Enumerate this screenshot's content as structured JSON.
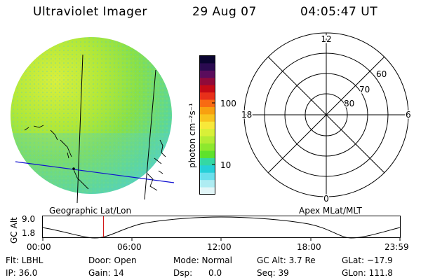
{
  "header": {
    "instrument": "Ultraviolet Imager",
    "date": "29 Aug 07",
    "time": "04:05:47 UT"
  },
  "colorbar": {
    "unit_label": "photon cm⁻²s⁻¹",
    "ticks": [
      "100",
      "10"
    ],
    "colors": [
      "#0a0430",
      "#2a0a50",
      "#5a0c5c",
      "#900a3a",
      "#c40a16",
      "#e8301a",
      "#f86a12",
      "#f8a010",
      "#f8c41e",
      "#f8e83a",
      "#d8f038",
      "#b4ec34",
      "#8ee82e",
      "#5ee22c",
      "#34d8a4",
      "#26d0d8",
      "#6ae0ec",
      "#aeecf2",
      "#e2f6f8"
    ]
  },
  "polar": {
    "mlt_labels": {
      "top": "12",
      "left": "18",
      "right": "6",
      "bottom": "0"
    },
    "lat_labels": [
      "60",
      "70",
      "80"
    ]
  },
  "timeline": {
    "left_title": "Geographic Lat/Lon",
    "right_title": "Apex MLat/MLT",
    "axis_label": "GC Alt",
    "y_ticks": [
      "9.0",
      "1.8"
    ],
    "x_ticks": [
      "00:00",
      "06:00",
      "12:00",
      "18:00",
      "23:59"
    ],
    "current_time_fraction": 0.17
  },
  "info": {
    "row1": {
      "flt": "Flt: LBHL",
      "door": "Door: Open",
      "mode": "Mode: Normal",
      "gcalt": "GC Alt: 3.7 Re",
      "glat": "GLat: −17.9"
    },
    "row2": {
      "ip": "IP: 36.0",
      "gain": "Gain: 14",
      "dsp": "Dsp:      0.0",
      "seq": "Seq: 39",
      "glon": "GLon: 111.8"
    }
  }
}
